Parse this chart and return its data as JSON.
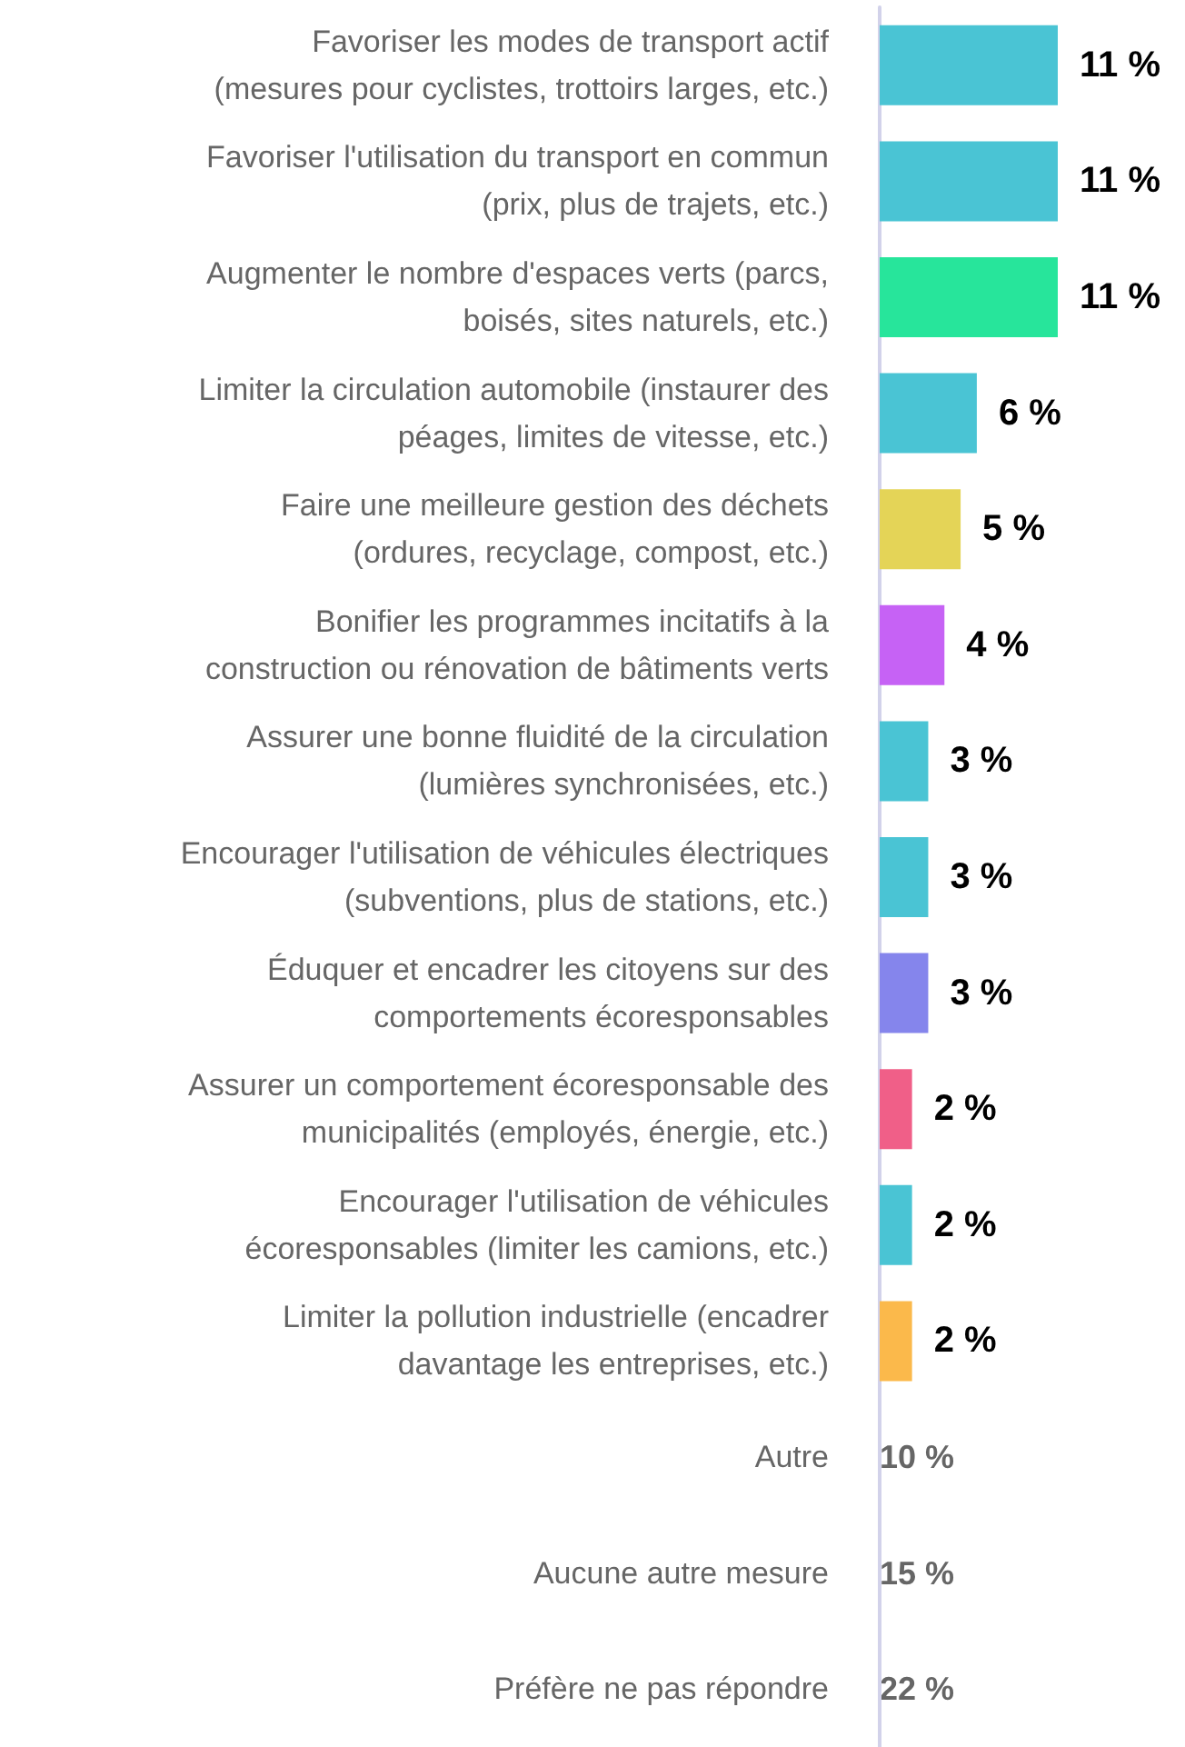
{
  "chart_data": {
    "type": "bar",
    "orientation": "horizontal",
    "categories": [
      "Favoriser les modes de transport actif\n(mesures pour cyclistes, trottoirs larges, etc.)",
      "Favoriser l'utilisation du transport en commun\n(prix, plus de trajets, etc.)",
      "Augmenter le nombre d'espaces verts (parcs,\nboisés, sites naturels, etc.)",
      "Limiter la circulation automobile (instaurer des\npéages, limites de vitesse, etc.)",
      "Faire une meilleure gestion des déchets\n(ordures, recyclage, compost, etc.)",
      "Bonifier les programmes incitatifs à la\nconstruction ou rénovation de bâtiments verts",
      "Assurer une bonne fluidité de la circulation\n(lumières synchronisées, etc.)",
      "Encourager l'utilisation de véhicules électriques\n(subventions, plus de stations, etc.)",
      "Éduquer et encadrer les citoyens sur des\ncomportements écoresponsables",
      "Assurer un comportement écoresponsable des\nmunicipalités (employés, énergie, etc.)",
      "Encourager l'utilisation de véhicules\nécoresponsables (limiter les camions, etc.)",
      "Limiter la pollution industrielle (encadrer\ndavantage les entreprises, etc.)",
      "Autre",
      "Aucune autre mesure",
      "Préfère ne pas répondre"
    ],
    "values": [
      11,
      11,
      11,
      6,
      5,
      4,
      3,
      3,
      3,
      2,
      2,
      2,
      null,
      null,
      null
    ],
    "value_labels": [
      "11 %",
      "11 %",
      "11 %",
      "6 %",
      "5 %",
      "4 %",
      "3 %",
      "3 %",
      "3 %",
      "2 %",
      "2 %",
      "2 %",
      "10 %",
      "15 %",
      "22 %"
    ],
    "colors": [
      "#4ac4d4",
      "#4ac4d4",
      "#27e59b",
      "#4ac4d4",
      "#e4d457",
      "#c662f5",
      "#4ac4d4",
      "#4ac4d4",
      "#8585ec",
      "#f05f88",
      "#4ac4d4",
      "#fbb94b",
      null,
      null,
      null
    ]
  }
}
